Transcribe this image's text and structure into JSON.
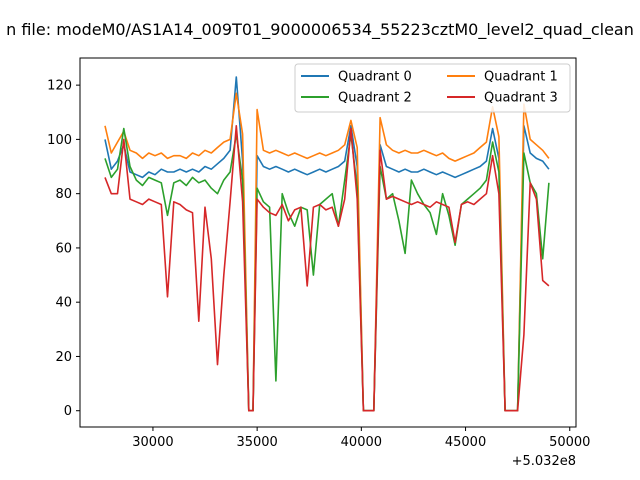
{
  "chart_data": {
    "type": "line",
    "title": "n file: modeM0/AS1A14_009T01_9000006534_55223cztM0_level2_quad_clean",
    "xlabel": "",
    "ylabel": "",
    "offset_text": "+5.032e8",
    "xlim": [
      26500,
      50300
    ],
    "ylim": [
      -6,
      130
    ],
    "xticks": [
      30000,
      35000,
      40000,
      45000,
      50000
    ],
    "yticks": [
      0,
      20,
      40,
      60,
      80,
      100,
      120
    ],
    "legend_position": "top-right",
    "legend_columns": 2,
    "colors": {
      "Quadrant 0": "#1f77b4",
      "Quadrant 1": "#ff7f0e",
      "Quadrant 2": "#2ca02c",
      "Quadrant 3": "#d62728"
    },
    "x": [
      27700,
      28000,
      28300,
      28600,
      28900,
      29200,
      29500,
      29800,
      30100,
      30400,
      30700,
      31000,
      31300,
      31600,
      31900,
      32200,
      32500,
      32800,
      33100,
      33400,
      33700,
      34000,
      34300,
      34600,
      34800,
      35000,
      35300,
      35600,
      35900,
      36200,
      36500,
      36800,
      37100,
      37400,
      37700,
      38000,
      38300,
      38600,
      38900,
      39200,
      39500,
      39800,
      40100,
      40400,
      40600,
      40900,
      41200,
      41500,
      41800,
      42100,
      42400,
      42700,
      43000,
      43300,
      43600,
      43900,
      44200,
      44500,
      44800,
      45100,
      45400,
      45700,
      46000,
      46300,
      46600,
      46900,
      47200,
      47500,
      47800,
      48100,
      48400,
      48700,
      49000
    ],
    "series": [
      {
        "name": "Quadrant 0",
        "values": [
          100,
          89,
          92,
          98,
          88,
          87,
          86,
          88,
          87,
          89,
          88,
          88,
          89,
          88,
          89,
          88,
          90,
          89,
          91,
          93,
          96,
          123,
          92,
          0,
          0,
          94,
          90,
          89,
          90,
          89,
          88,
          89,
          88,
          87,
          88,
          89,
          88,
          89,
          90,
          92,
          105,
          90,
          0,
          0,
          0,
          98,
          90,
          89,
          88,
          89,
          88,
          88,
          89,
          88,
          87,
          88,
          87,
          86,
          87,
          88,
          89,
          90,
          92,
          104,
          93,
          0,
          0,
          0,
          105,
          95,
          93,
          92,
          89
        ]
      },
      {
        "name": "Quadrant 1",
        "values": [
          105,
          95,
          99,
          103,
          96,
          95,
          93,
          95,
          94,
          95,
          93,
          94,
          94,
          93,
          95,
          94,
          96,
          95,
          97,
          99,
          100,
          117,
          102,
          0,
          0,
          111,
          96,
          95,
          96,
          95,
          94,
          95,
          94,
          93,
          94,
          95,
          94,
          95,
          96,
          98,
          107,
          97,
          0,
          0,
          0,
          108,
          98,
          96,
          95,
          96,
          95,
          95,
          96,
          95,
          94,
          95,
          93,
          92,
          93,
          94,
          95,
          97,
          99,
          112,
          101,
          0,
          0,
          0,
          113,
          100,
          98,
          96,
          93
        ]
      },
      {
        "name": "Quadrant 2",
        "values": [
          93,
          86,
          89,
          104,
          90,
          85,
          83,
          86,
          85,
          84,
          72,
          84,
          85,
          83,
          86,
          84,
          85,
          82,
          80,
          85,
          88,
          102,
          85,
          0,
          0,
          82,
          77,
          75,
          11,
          80,
          73,
          68,
          75,
          74,
          50,
          76,
          78,
          80,
          68,
          85,
          102,
          82,
          0,
          0,
          0,
          90,
          78,
          80,
          70,
          58,
          85,
          80,
          76,
          73,
          65,
          80,
          72,
          61,
          76,
          78,
          80,
          82,
          85,
          99,
          88,
          0,
          0,
          0,
          95,
          84,
          80,
          56,
          84
        ]
      },
      {
        "name": "Quadrant 3",
        "values": [
          86,
          80,
          80,
          100,
          78,
          77,
          76,
          78,
          77,
          76,
          42,
          77,
          76,
          74,
          73,
          33,
          75,
          56,
          17,
          50,
          77,
          105,
          77,
          0,
          0,
          78,
          75,
          73,
          72,
          76,
          70,
          74,
          75,
          46,
          75,
          76,
          74,
          75,
          68,
          78,
          104,
          78,
          0,
          0,
          0,
          96,
          78,
          79,
          78,
          77,
          76,
          77,
          76,
          75,
          77,
          76,
          75,
          62,
          76,
          77,
          76,
          78,
          80,
          94,
          80,
          0,
          0,
          0,
          28,
          84,
          78,
          48,
          46
        ]
      }
    ]
  }
}
